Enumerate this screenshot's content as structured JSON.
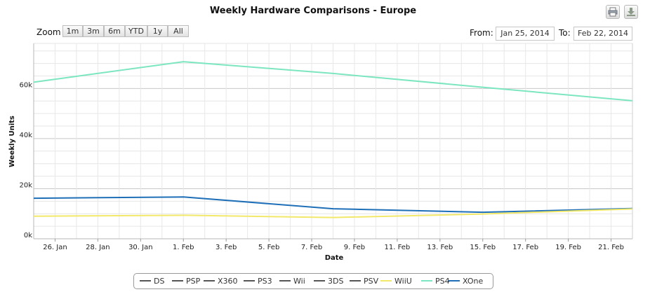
{
  "toolbar": {
    "zoom_label": "Zoom",
    "zoom_buttons": [
      "1m",
      "3m",
      "6m",
      "YTD",
      "1y",
      "All"
    ],
    "from_label": "From:",
    "from_value": "Jan 25, 2014",
    "to_label": "To:",
    "to_value": "Feb 22, 2014",
    "print_icon": "printer-icon",
    "export_icon": "download-icon"
  },
  "chart_data": {
    "type": "line",
    "title": "Weekly Hardware Comparisons - Europe",
    "xlabel": "Date",
    "ylabel": "Weekly Units",
    "x_range": [
      "2014-01-25",
      "2014-02-22"
    ],
    "ylim": [
      0,
      78000
    ],
    "y_ticks": [
      0,
      20000,
      40000,
      60000
    ],
    "y_tick_labels": [
      "0k",
      "20k",
      "40k",
      "60k"
    ],
    "x_ticks": [
      "2014-01-26",
      "2014-01-28",
      "2014-01-30",
      "2014-02-01",
      "2014-02-03",
      "2014-02-05",
      "2014-02-07",
      "2014-02-09",
      "2014-02-11",
      "2014-02-13",
      "2014-02-15",
      "2014-02-17",
      "2014-02-19",
      "2014-02-21"
    ],
    "x_tick_labels": [
      "26. Jan",
      "28. Jan",
      "30. Jan",
      "1. Feb",
      "3. Feb",
      "5. Feb",
      "7. Feb",
      "9. Feb",
      "11. Feb",
      "13. Feb",
      "15. Feb",
      "17. Feb",
      "19. Feb",
      "21. Feb"
    ],
    "grid": true,
    "legend_position": "bottom-center",
    "legend": [
      "DS",
      "PSP",
      "X360",
      "PS3",
      "Wii",
      "3DS",
      "PSV",
      "WiiU",
      "PS4",
      "XOne"
    ],
    "series": [
      {
        "name": "PS4",
        "color": "#7ce6c0",
        "x": [
          "2014-01-25",
          "2014-02-01",
          "2014-02-08",
          "2014-02-15",
          "2014-02-22"
        ],
        "values": [
          62500,
          70700,
          66000,
          60500,
          55100
        ]
      },
      {
        "name": "XOne",
        "color": "#1e6fb8",
        "x": [
          "2014-01-25",
          "2014-02-01",
          "2014-02-08",
          "2014-02-15",
          "2014-02-22"
        ],
        "values": [
          16200,
          16700,
          12000,
          10600,
          12100
        ]
      },
      {
        "name": "WiiU",
        "color": "#f2e86a",
        "x": [
          "2014-01-25",
          "2014-02-01",
          "2014-02-08",
          "2014-02-15",
          "2014-02-22"
        ],
        "values": [
          9000,
          9400,
          8500,
          9900,
          11900
        ]
      }
    ],
    "legend_colors": {
      "DS": "#555555",
      "PSP": "#555555",
      "X360": "#555555",
      "PS3": "#555555",
      "Wii": "#555555",
      "3DS": "#555555",
      "PSV": "#555555",
      "WiiU": "#f2e86a",
      "PS4": "#7ce6c0",
      "XOne": "#1e6fb8"
    }
  }
}
